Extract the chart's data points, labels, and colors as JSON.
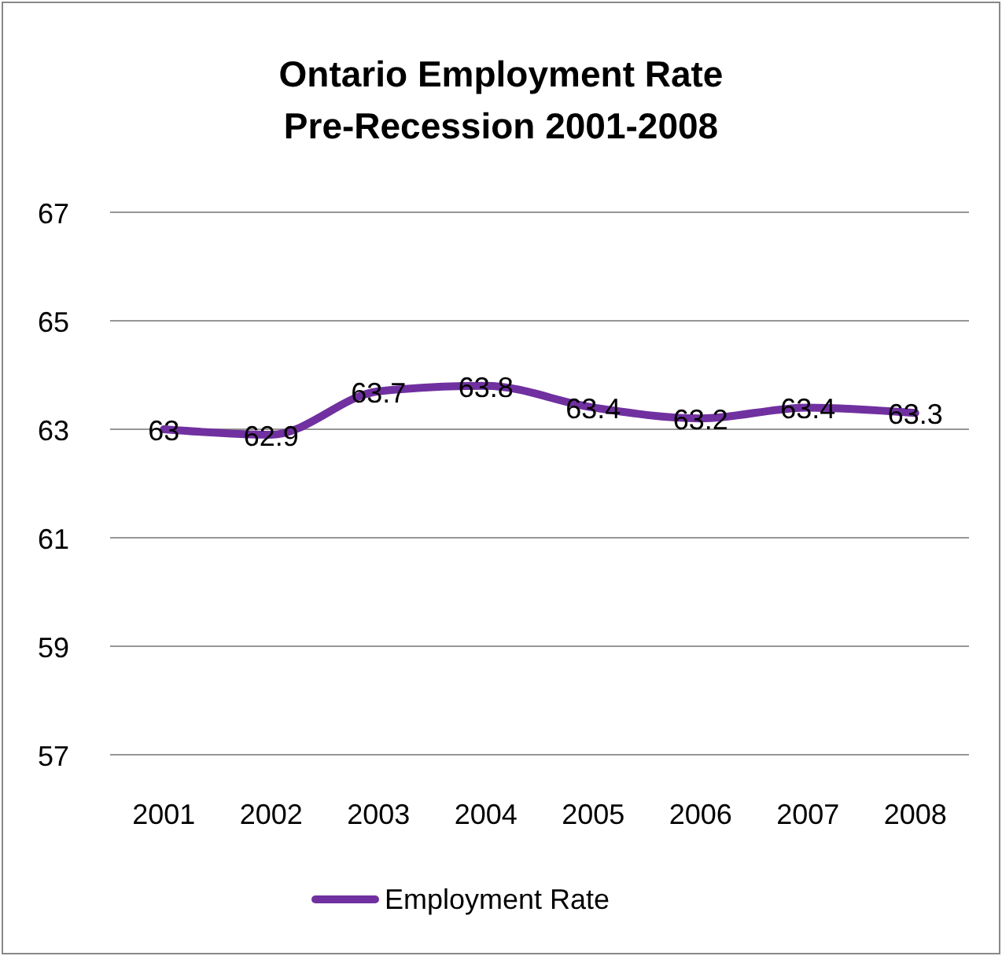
{
  "chart_data": {
    "type": "line",
    "title": "Ontario Employment Rate\nPre-Recession 2001-2008",
    "categories": [
      "2001",
      "2002",
      "2003",
      "2004",
      "2005",
      "2006",
      "2007",
      "2008"
    ],
    "series": [
      {
        "name": "Employment Rate",
        "color": "#7030a0",
        "values": [
          63,
          62.9,
          63.7,
          63.8,
          63.4,
          63.2,
          63.4,
          63.3
        ]
      }
    ],
    "ylim": [
      57,
      67
    ],
    "yticks": [
      57,
      59,
      61,
      63,
      65,
      67
    ],
    "grid": "y",
    "legend": "bottom",
    "data_labels": true,
    "marker": "none",
    "line_style": "solid"
  }
}
